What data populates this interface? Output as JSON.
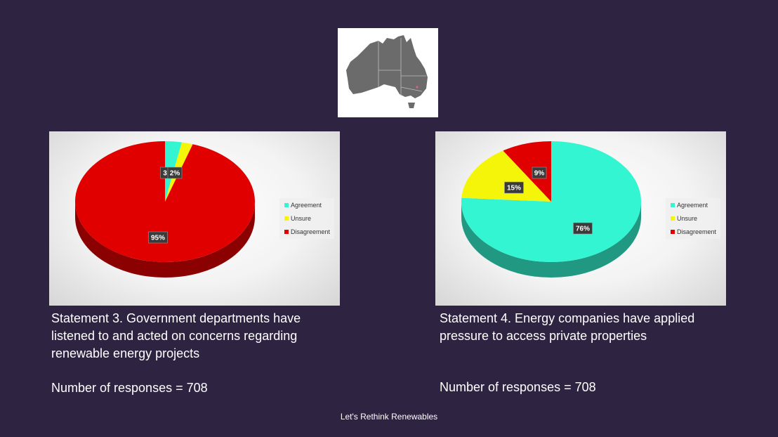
{
  "footer": {
    "text": "Let's Rethink Renewables"
  },
  "map": {
    "icon": "australia-map-icon",
    "land_color": "#6b6b6b",
    "highlight_color": "#e06080"
  },
  "left": {
    "statement": "Statement 3. Government departments have listened to and acted on concerns regarding renewable energy projects",
    "responses": "Number of responses = 708"
  },
  "right": {
    "statement": "Statement 4. Energy companies have applied pressure to access private properties",
    "responses": "Number of responses = 708"
  },
  "chart_data": [
    {
      "type": "pie",
      "categories": [
        "Agreement",
        "Unsure",
        "Disagreement"
      ],
      "values": [
        3,
        2,
        95
      ],
      "data_labels": [
        "3",
        "2%",
        "95%"
      ],
      "colors": [
        "#33f5d2",
        "#f5f50a",
        "#e00000"
      ],
      "legend": "right",
      "title": ""
    },
    {
      "type": "pie",
      "categories": [
        "Agreement",
        "Unsure",
        "Disagreement"
      ],
      "values": [
        76,
        15,
        9
      ],
      "data_labels": [
        "76%",
        "15%",
        "9%"
      ],
      "colors": [
        "#33f5d2",
        "#f5f50a",
        "#e00000"
      ],
      "legend": "right",
      "title": ""
    }
  ]
}
